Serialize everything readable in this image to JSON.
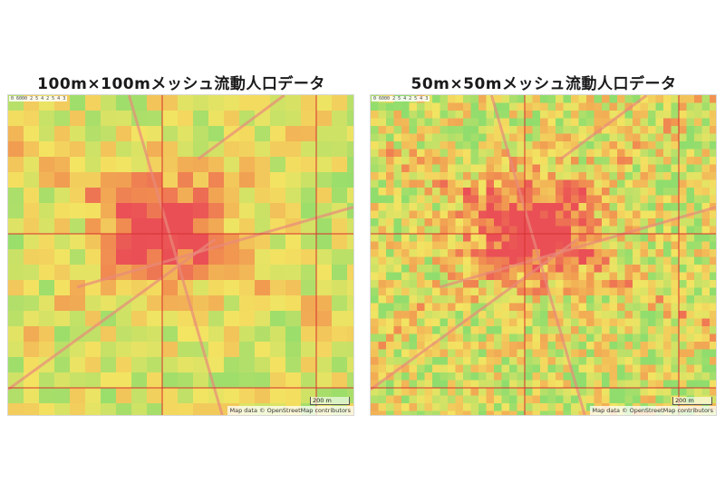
{
  "panels": [
    {
      "title": "100m×100mメッシュ流動人口データ",
      "attribution": "Map data © OpenStreetMap contributors",
      "scale_label": "200 m",
      "corner_label": "0 6000 2 5 4 2 5 4 3",
      "mesh_size_m": 100
    },
    {
      "title": "50m×50mメッシュ流動人口データ",
      "attribution": "Map data © OpenStreetMap contributors",
      "scale_label": "200 m",
      "corner_label": "0 6000 2 5 4 2 5 4 3",
      "mesh_size_m": 50
    }
  ],
  "colors": {
    "low": "#7ed957",
    "mid": "#f2e24a",
    "high": "#f08a35",
    "very_high": "#e8333c",
    "grid_line": "#d8302e",
    "road": "#e88a7a",
    "map_base": "#f3efe6"
  }
}
